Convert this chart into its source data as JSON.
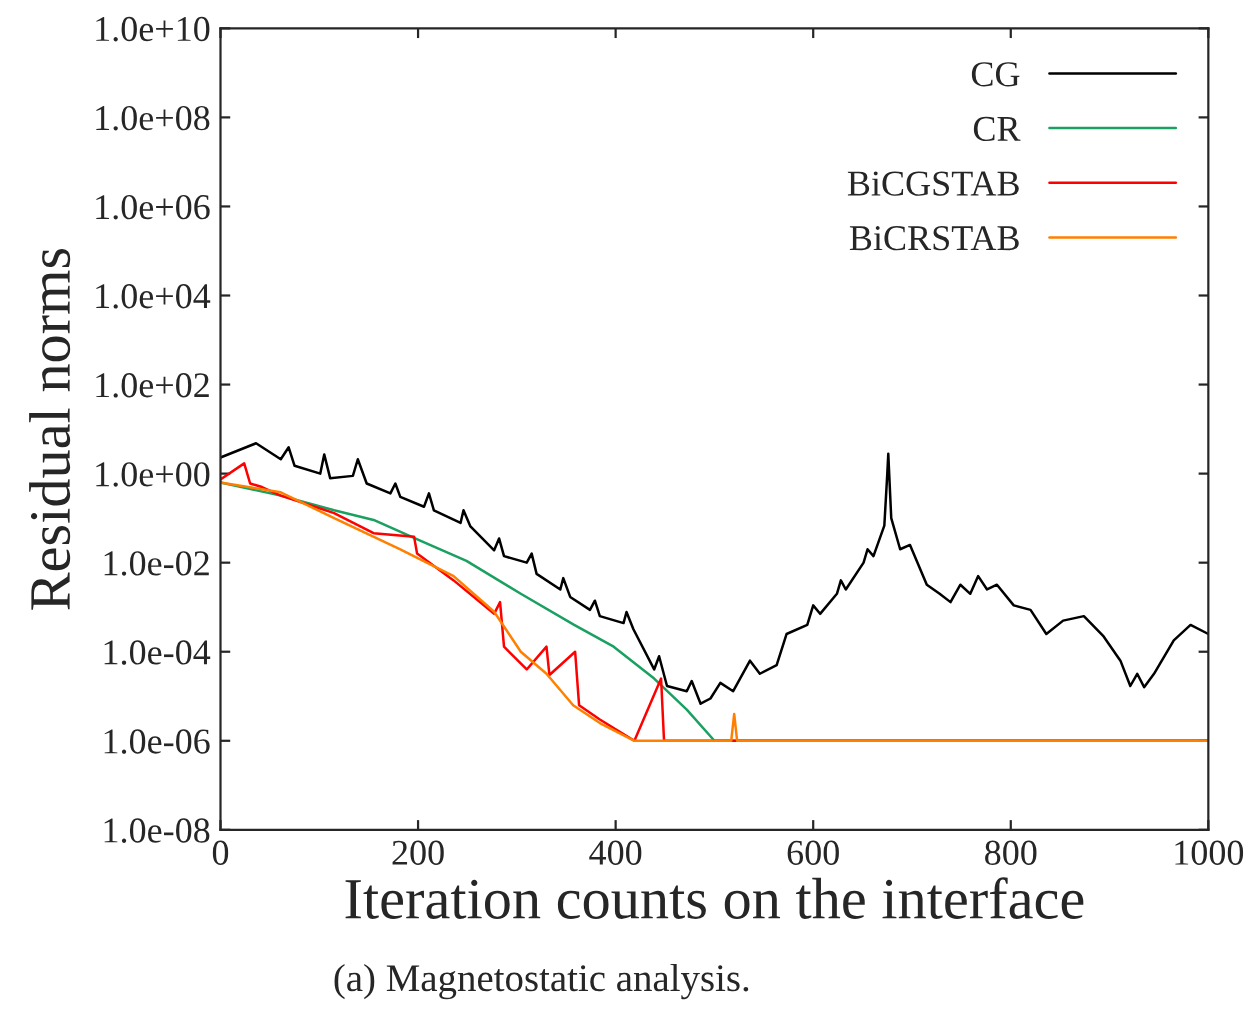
{
  "chart_data": {
    "type": "line",
    "xlabel": "Iteration counts on the interface",
    "ylabel": "Residual norms",
    "annotations": [
      "(a) Magnetostatic analysis."
    ],
    "log": true,
    "grid": false,
    "legend": "top right",
    "marker": "none",
    "line_style": "solid",
    "xlim": [
      0,
      1000
    ],
    "xticks": [
      0,
      200,
      400,
      600,
      800,
      1000
    ],
    "ylim": [
      1e-08,
      10000000000.0
    ],
    "yticks": [
      {
        "value": 1e-08,
        "label": "1.0e-08"
      },
      {
        "value": 1e-06,
        "label": "1.0e-06"
      },
      {
        "value": 0.0001,
        "label": "1.0e-04"
      },
      {
        "value": 0.01,
        "label": "1.0e-02"
      },
      {
        "value": 1,
        "label": "1.0e+00"
      },
      {
        "value": 100.0,
        "label": "1.0e+02"
      },
      {
        "value": 10000.0,
        "label": "1.0e+04"
      },
      {
        "value": 1000000.0,
        "label": "1.0e+06"
      },
      {
        "value": 100000000.0,
        "label": "1.0e+08"
      },
      {
        "value": 10000000000.0,
        "label": "1.0e+10"
      }
    ],
    "series": [
      {
        "name": "CG",
        "color": "#000000",
        "x": [
          0,
          36,
          61,
          69,
          75,
          101,
          105,
          111,
          134,
          139,
          148,
          172,
          177,
          182,
          206,
          211,
          216,
          243,
          246,
          253,
          277,
          282,
          287,
          310,
          315,
          320,
          344,
          347,
          354,
          374,
          379,
          384,
          408,
          411,
          418,
          439,
          444,
          452,
          472,
          477,
          486,
          496,
          506,
          519,
          536,
          546,
          563,
          573,
          594,
          600,
          607,
          624,
          628,
          633,
          651,
          655,
          661,
          672,
          675,
          676,
          679,
          688,
          698,
          715,
          728,
          739,
          749,
          759,
          767,
          776,
          786,
          803,
          820,
          836,
          853,
          874,
          894,
          911,
          921,
          928,
          935,
          945,
          965,
          982,
          1000
        ],
        "values": [
          2.3,
          4.8,
          2.1,
          3.9,
          1.5,
          1.0,
          2.7,
          0.79,
          0.89,
          2.1,
          0.6,
          0.36,
          0.6,
          0.3,
          0.18,
          0.36,
          0.15,
          0.078,
          0.15,
          0.065,
          0.019,
          0.035,
          0.014,
          0.01,
          0.016,
          0.0056,
          0.0025,
          0.0045,
          0.0017,
          0.00087,
          0.0014,
          0.00063,
          0.00044,
          0.00078,
          0.00032,
          4e-05,
          7.9e-05,
          1.7e-05,
          1.3e-05,
          2.2e-05,
          6.8e-06,
          8.9e-06,
          2e-05,
          1.3e-05,
          6.3e-05,
          3.2e-05,
          5e-05,
          0.00025,
          0.0004,
          0.0011,
          0.00071,
          0.002,
          0.004,
          0.0025,
          0.01,
          0.02,
          0.014,
          0.068,
          1.0,
          2.8,
          0.1,
          0.02,
          0.025,
          0.0032,
          0.002,
          0.0013,
          0.0032,
          0.002,
          0.005,
          0.0025,
          0.0032,
          0.0011,
          0.00087,
          0.00025,
          0.0005,
          0.00063,
          0.00022,
          6.3e-05,
          1.7e-05,
          3.2e-05,
          1.6e-05,
          3.2e-05,
          0.00018,
          0.0004,
          0.00025
        ]
      },
      {
        "name": "CR",
        "color": "#1aa060",
        "x": [
          0,
          61,
          115,
          155,
          201,
          249,
          304,
          358,
          398,
          439,
          472,
          500,
          1000
        ],
        "values": [
          0.63,
          0.32,
          0.15,
          0.091,
          0.032,
          0.011,
          0.002,
          0.0004,
          0.00013,
          2.5e-05,
          5e-06,
          1e-06,
          1e-06
        ]
      },
      {
        "name": "BiCGSTAB",
        "color": "#ff0000",
        "x": [
          0,
          24,
          30,
          42,
          61,
          115,
          155,
          196,
          199,
          236,
          277,
          283,
          287,
          310,
          330,
          333,
          359,
          363,
          384,
          419,
          446,
          449,
          1000
        ],
        "values": [
          0.74,
          1.7,
          0.6,
          0.5,
          0.32,
          0.13,
          0.046,
          0.038,
          0.016,
          0.004,
          0.00071,
          0.0013,
          0.00013,
          4e-05,
          0.00013,
          3e-05,
          0.0001,
          6.3e-06,
          3e-06,
          1e-06,
          2.5e-05,
          1e-06,
          1e-06
        ]
      },
      {
        "name": "BiCRSTAB",
        "color": "#ff8000",
        "x": [
          0,
          61,
          115,
          182,
          236,
          277,
          304,
          330,
          357,
          384,
          419,
          517,
          520,
          523,
          1000
        ],
        "values": [
          0.63,
          0.38,
          0.1,
          0.02,
          0.005,
          0.00079,
          0.0001,
          3.2e-05,
          6.3e-06,
          2.5e-06,
          1e-06,
          1e-06,
          4e-06,
          1e-06,
          1e-06
        ]
      }
    ]
  }
}
